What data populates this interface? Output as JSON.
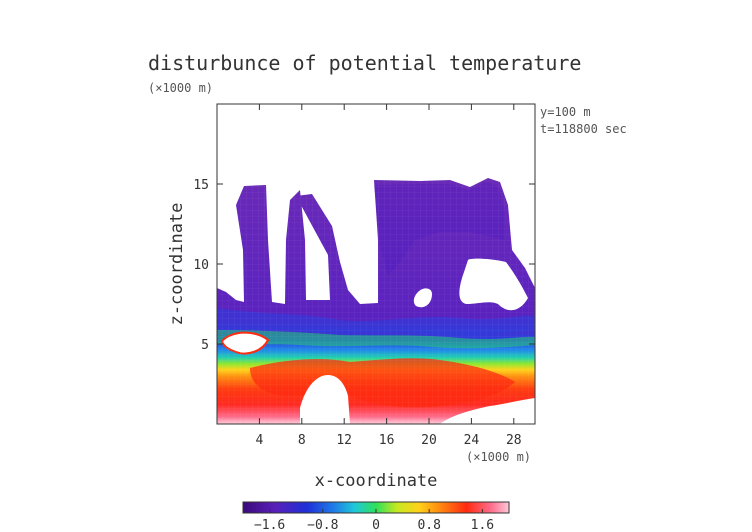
{
  "chart_data": {
    "type": "heatmap",
    "title": "disturbunce of potential temperature",
    "x_unit": "(×1000 m)",
    "z_unit": "(×1000 m)",
    "xlabel": "x-coordinate",
    "ylabel": "z-coordinate",
    "annotations": [
      "y=100 m",
      "t=118800 sec"
    ],
    "xlim": [
      0,
      30
    ],
    "ylim": [
      0,
      20
    ],
    "x_ticks": [
      4,
      8,
      12,
      16,
      20,
      24,
      28
    ],
    "y_ticks": [
      5,
      10,
      15
    ],
    "colorbar": {
      "range": [
        -2.0,
        2.0
      ],
      "ticks": [
        -1.6,
        -0.8,
        0,
        0.8,
        1.6
      ],
      "tick_labels": [
        "−1.6",
        "−0.8",
        "0",
        "0.8",
        "1.6"
      ]
    },
    "grid": false,
    "layers": [
      {
        "z_range": [
          6.5,
          8.5
        ],
        "value": -1.8
      },
      {
        "z_range": [
          6.0,
          6.5
        ],
        "value": -1.2
      },
      {
        "z_range": [
          5.4,
          6.0
        ],
        "value": -0.4
      },
      {
        "z_range": [
          4.8,
          5.4
        ],
        "value": 0.6
      },
      {
        "z_range": [
          2.0,
          4.8
        ],
        "value": 1.5
      },
      {
        "z_range": [
          1.0,
          2.0
        ],
        "value": 1.9
      }
    ]
  }
}
